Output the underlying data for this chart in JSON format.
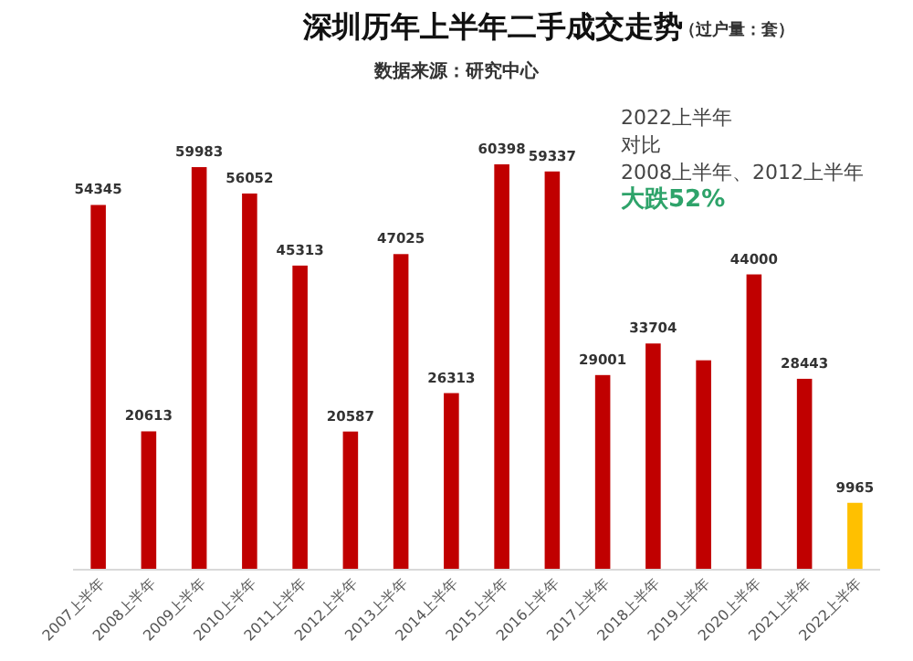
{
  "chart_data": {
    "type": "bar",
    "title": "深圳历年上半年二手成交走势",
    "subtitle": "（过户量：套）",
    "annotations": [
      "数据来源：研究中心",
      "2022上半年",
      "对比",
      "2008上半年、2012上半年",
      "大跌52%"
    ],
    "categories": [
      "2007上半年",
      "2008上半年",
      "2009上半年",
      "2010上半年",
      "2011上半年",
      "2012上半年",
      "2013上半年",
      "2014上半年",
      "2015上半年",
      "2016上半年",
      "2017上半年",
      "2018上半年",
      "2019上半年",
      "2020上半年",
      "2021上半年",
      "2022上半年"
    ],
    "values": [
      54345,
      20613,
      59983,
      56052,
      45313,
      20587,
      47025,
      26313,
      60398,
      59337,
      29001,
      33704,
      31200,
      44000,
      28443,
      9965
    ],
    "colors": [
      "#c00000",
      "#c00000",
      "#c00000",
      "#c00000",
      "#c00000",
      "#c00000",
      "#c00000",
      "#c00000",
      "#c00000",
      "#c00000",
      "#c00000",
      "#c00000",
      "#c00000",
      "#c00000",
      "#c00000",
      "#ffc000"
    ],
    "value_labels": [
      "54345",
      "20613",
      "59983",
      "56052",
      "45313",
      "20587",
      "47025",
      "26313",
      "60398",
      "59337",
      "29001",
      "33704",
      null,
      "44000",
      "28443",
      "9965"
    ]
  }
}
